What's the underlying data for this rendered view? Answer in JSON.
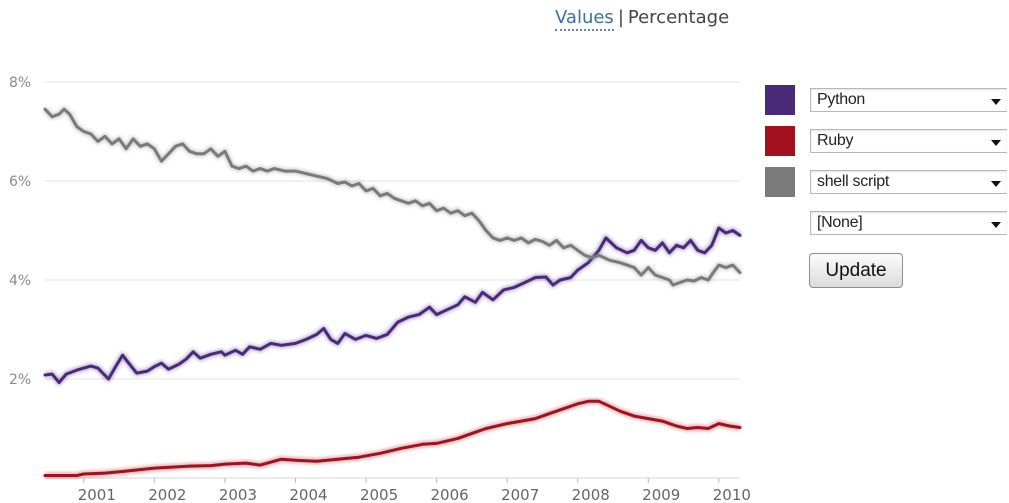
{
  "header": {
    "values_label": "Values",
    "separator": "|",
    "percentage_label": "Percentage"
  },
  "controls": {
    "selectors": [
      {
        "label": "Python",
        "color": "#4a2a78"
      },
      {
        "label": "Ruby",
        "color": "#a31020"
      },
      {
        "label": "shell script",
        "color": "#7a7a7a"
      },
      {
        "label": "[None]",
        "color": null
      }
    ],
    "update_label": "Update"
  },
  "chart_data": {
    "type": "line",
    "ylim": [
      0,
      8
    ],
    "xlim": [
      2000.45,
      2010.3
    ],
    "y_ticks": [
      {
        "value": 2,
        "label": "2%"
      },
      {
        "value": 4,
        "label": "4%"
      },
      {
        "value": 6,
        "label": "6%"
      },
      {
        "value": 8,
        "label": "8%"
      }
    ],
    "x_ticks": [
      {
        "value": 2001,
        "label": "2001"
      },
      {
        "value": 2002,
        "label": "2002"
      },
      {
        "value": 2003,
        "label": "2003"
      },
      {
        "value": 2004,
        "label": "2004"
      },
      {
        "value": 2005,
        "label": "2005"
      },
      {
        "value": 2006,
        "label": "2006"
      },
      {
        "value": 2007,
        "label": "2007"
      },
      {
        "value": 2008,
        "label": "2008"
      },
      {
        "value": 2009,
        "label": "2009"
      },
      {
        "value": 2010,
        "label": "2010"
      }
    ],
    "grid": true,
    "legend": "right",
    "series": [
      {
        "name": "Python",
        "color": "#4a2a78",
        "points": [
          [
            2000.45,
            2.08
          ],
          [
            2000.55,
            2.1
          ],
          [
            2000.65,
            1.93
          ],
          [
            2000.75,
            2.1
          ],
          [
            2000.9,
            2.18
          ],
          [
            2001.0,
            2.22
          ],
          [
            2001.1,
            2.26
          ],
          [
            2001.2,
            2.22
          ],
          [
            2001.35,
            2.0
          ],
          [
            2001.45,
            2.25
          ],
          [
            2001.55,
            2.48
          ],
          [
            2001.62,
            2.35
          ],
          [
            2001.75,
            2.12
          ],
          [
            2001.9,
            2.16
          ],
          [
            2002.0,
            2.25
          ],
          [
            2002.1,
            2.32
          ],
          [
            2002.2,
            2.2
          ],
          [
            2002.35,
            2.3
          ],
          [
            2002.45,
            2.4
          ],
          [
            2002.55,
            2.55
          ],
          [
            2002.65,
            2.42
          ],
          [
            2002.8,
            2.5
          ],
          [
            2002.95,
            2.55
          ],
          [
            2003.0,
            2.48
          ],
          [
            2003.15,
            2.58
          ],
          [
            2003.25,
            2.5
          ],
          [
            2003.35,
            2.65
          ],
          [
            2003.5,
            2.6
          ],
          [
            2003.65,
            2.72
          ],
          [
            2003.8,
            2.68
          ],
          [
            2004.0,
            2.72
          ],
          [
            2004.15,
            2.8
          ],
          [
            2004.3,
            2.9
          ],
          [
            2004.4,
            3.02
          ],
          [
            2004.5,
            2.8
          ],
          [
            2004.6,
            2.72
          ],
          [
            2004.7,
            2.92
          ],
          [
            2004.85,
            2.8
          ],
          [
            2005.0,
            2.88
          ],
          [
            2005.15,
            2.82
          ],
          [
            2005.3,
            2.9
          ],
          [
            2005.45,
            3.15
          ],
          [
            2005.6,
            3.25
          ],
          [
            2005.75,
            3.3
          ],
          [
            2005.9,
            3.45
          ],
          [
            2006.0,
            3.3
          ],
          [
            2006.15,
            3.4
          ],
          [
            2006.3,
            3.5
          ],
          [
            2006.4,
            3.66
          ],
          [
            2006.55,
            3.55
          ],
          [
            2006.65,
            3.75
          ],
          [
            2006.8,
            3.6
          ],
          [
            2006.95,
            3.8
          ],
          [
            2007.1,
            3.85
          ],
          [
            2007.25,
            3.95
          ],
          [
            2007.4,
            4.05
          ],
          [
            2007.55,
            4.06
          ],
          [
            2007.65,
            3.9
          ],
          [
            2007.75,
            4.0
          ],
          [
            2007.9,
            4.05
          ],
          [
            2008.0,
            4.2
          ],
          [
            2008.15,
            4.35
          ],
          [
            2008.3,
            4.6
          ],
          [
            2008.4,
            4.85
          ],
          [
            2008.55,
            4.65
          ],
          [
            2008.7,
            4.55
          ],
          [
            2008.8,
            4.6
          ],
          [
            2008.9,
            4.8
          ],
          [
            2009.0,
            4.65
          ],
          [
            2009.1,
            4.6
          ],
          [
            2009.2,
            4.75
          ],
          [
            2009.3,
            4.55
          ],
          [
            2009.4,
            4.7
          ],
          [
            2009.5,
            4.65
          ],
          [
            2009.6,
            4.8
          ],
          [
            2009.7,
            4.6
          ],
          [
            2009.8,
            4.55
          ],
          [
            2009.9,
            4.7
          ],
          [
            2010.0,
            5.05
          ],
          [
            2010.1,
            4.95
          ],
          [
            2010.2,
            5.0
          ],
          [
            2010.3,
            4.9
          ]
        ]
      },
      {
        "name": "Ruby",
        "color": "#a31020",
        "points": [
          [
            2000.45,
            0.05
          ],
          [
            2000.9,
            0.05
          ],
          [
            2001.0,
            0.08
          ],
          [
            2001.3,
            0.1
          ],
          [
            2001.6,
            0.14
          ],
          [
            2002.0,
            0.2
          ],
          [
            2002.5,
            0.24
          ],
          [
            2002.8,
            0.25
          ],
          [
            2003.0,
            0.28
          ],
          [
            2003.3,
            0.3
          ],
          [
            2003.5,
            0.26
          ],
          [
            2003.8,
            0.38
          ],
          [
            2004.0,
            0.36
          ],
          [
            2004.3,
            0.34
          ],
          [
            2004.6,
            0.38
          ],
          [
            2004.9,
            0.42
          ],
          [
            2005.2,
            0.5
          ],
          [
            2005.5,
            0.6
          ],
          [
            2005.8,
            0.68
          ],
          [
            2006.0,
            0.7
          ],
          [
            2006.3,
            0.8
          ],
          [
            2006.5,
            0.9
          ],
          [
            2006.7,
            1.0
          ],
          [
            2007.0,
            1.1
          ],
          [
            2007.2,
            1.15
          ],
          [
            2007.4,
            1.2
          ],
          [
            2007.6,
            1.3
          ],
          [
            2007.8,
            1.4
          ],
          [
            2008.0,
            1.5
          ],
          [
            2008.15,
            1.55
          ],
          [
            2008.3,
            1.55
          ],
          [
            2008.45,
            1.45
          ],
          [
            2008.6,
            1.35
          ],
          [
            2008.8,
            1.25
          ],
          [
            2009.0,
            1.2
          ],
          [
            2009.2,
            1.15
          ],
          [
            2009.4,
            1.05
          ],
          [
            2009.55,
            1.0
          ],
          [
            2009.7,
            1.02
          ],
          [
            2009.85,
            1.0
          ],
          [
            2010.0,
            1.1
          ],
          [
            2010.15,
            1.05
          ],
          [
            2010.3,
            1.02
          ]
        ]
      },
      {
        "name": "shell script",
        "color": "#7a7a7a",
        "points": [
          [
            2000.45,
            7.45
          ],
          [
            2000.55,
            7.3
          ],
          [
            2000.65,
            7.35
          ],
          [
            2000.72,
            7.45
          ],
          [
            2000.8,
            7.35
          ],
          [
            2000.9,
            7.1
          ],
          [
            2001.0,
            7.0
          ],
          [
            2001.1,
            6.95
          ],
          [
            2001.2,
            6.8
          ],
          [
            2001.3,
            6.9
          ],
          [
            2001.4,
            6.75
          ],
          [
            2001.5,
            6.85
          ],
          [
            2001.6,
            6.65
          ],
          [
            2001.7,
            6.85
          ],
          [
            2001.8,
            6.7
          ],
          [
            2001.9,
            6.75
          ],
          [
            2002.0,
            6.65
          ],
          [
            2002.1,
            6.4
          ],
          [
            2002.2,
            6.55
          ],
          [
            2002.3,
            6.7
          ],
          [
            2002.4,
            6.75
          ],
          [
            2002.5,
            6.6
          ],
          [
            2002.6,
            6.55
          ],
          [
            2002.7,
            6.55
          ],
          [
            2002.8,
            6.65
          ],
          [
            2002.9,
            6.5
          ],
          [
            2003.0,
            6.6
          ],
          [
            2003.1,
            6.3
          ],
          [
            2003.2,
            6.25
          ],
          [
            2003.3,
            6.3
          ],
          [
            2003.4,
            6.2
          ],
          [
            2003.5,
            6.25
          ],
          [
            2003.6,
            6.2
          ],
          [
            2003.7,
            6.25
          ],
          [
            2003.85,
            6.2
          ],
          [
            2004.0,
            6.2
          ],
          [
            2004.15,
            6.15
          ],
          [
            2004.3,
            6.1
          ],
          [
            2004.45,
            6.05
          ],
          [
            2004.6,
            5.95
          ],
          [
            2004.7,
            5.98
          ],
          [
            2004.8,
            5.9
          ],
          [
            2004.9,
            5.95
          ],
          [
            2005.0,
            5.8
          ],
          [
            2005.1,
            5.85
          ],
          [
            2005.2,
            5.7
          ],
          [
            2005.3,
            5.75
          ],
          [
            2005.4,
            5.65
          ],
          [
            2005.5,
            5.6
          ],
          [
            2005.6,
            5.55
          ],
          [
            2005.7,
            5.6
          ],
          [
            2005.8,
            5.5
          ],
          [
            2005.9,
            5.55
          ],
          [
            2006.0,
            5.4
          ],
          [
            2006.1,
            5.45
          ],
          [
            2006.2,
            5.35
          ],
          [
            2006.3,
            5.4
          ],
          [
            2006.4,
            5.3
          ],
          [
            2006.5,
            5.35
          ],
          [
            2006.6,
            5.2
          ],
          [
            2006.7,
            5.0
          ],
          [
            2006.8,
            4.85
          ],
          [
            2006.9,
            4.8
          ],
          [
            2007.0,
            4.85
          ],
          [
            2007.1,
            4.8
          ],
          [
            2007.2,
            4.85
          ],
          [
            2007.3,
            4.75
          ],
          [
            2007.4,
            4.82
          ],
          [
            2007.5,
            4.78
          ],
          [
            2007.6,
            4.7
          ],
          [
            2007.7,
            4.8
          ],
          [
            2007.8,
            4.65
          ],
          [
            2007.9,
            4.7
          ],
          [
            2008.0,
            4.6
          ],
          [
            2008.1,
            4.5
          ],
          [
            2008.2,
            4.45
          ],
          [
            2008.3,
            4.5
          ],
          [
            2008.45,
            4.4
          ],
          [
            2008.6,
            4.35
          ],
          [
            2008.7,
            4.3
          ],
          [
            2008.8,
            4.25
          ],
          [
            2008.9,
            4.1
          ],
          [
            2009.0,
            4.25
          ],
          [
            2009.1,
            4.1
          ],
          [
            2009.2,
            4.05
          ],
          [
            2009.3,
            4.0
          ],
          [
            2009.35,
            3.9
          ],
          [
            2009.45,
            3.95
          ],
          [
            2009.55,
            4.0
          ],
          [
            2009.65,
            3.98
          ],
          [
            2009.75,
            4.05
          ],
          [
            2009.85,
            4.0
          ],
          [
            2009.92,
            4.15
          ],
          [
            2010.0,
            4.3
          ],
          [
            2010.1,
            4.25
          ],
          [
            2010.2,
            4.3
          ],
          [
            2010.3,
            4.15
          ]
        ]
      }
    ]
  }
}
